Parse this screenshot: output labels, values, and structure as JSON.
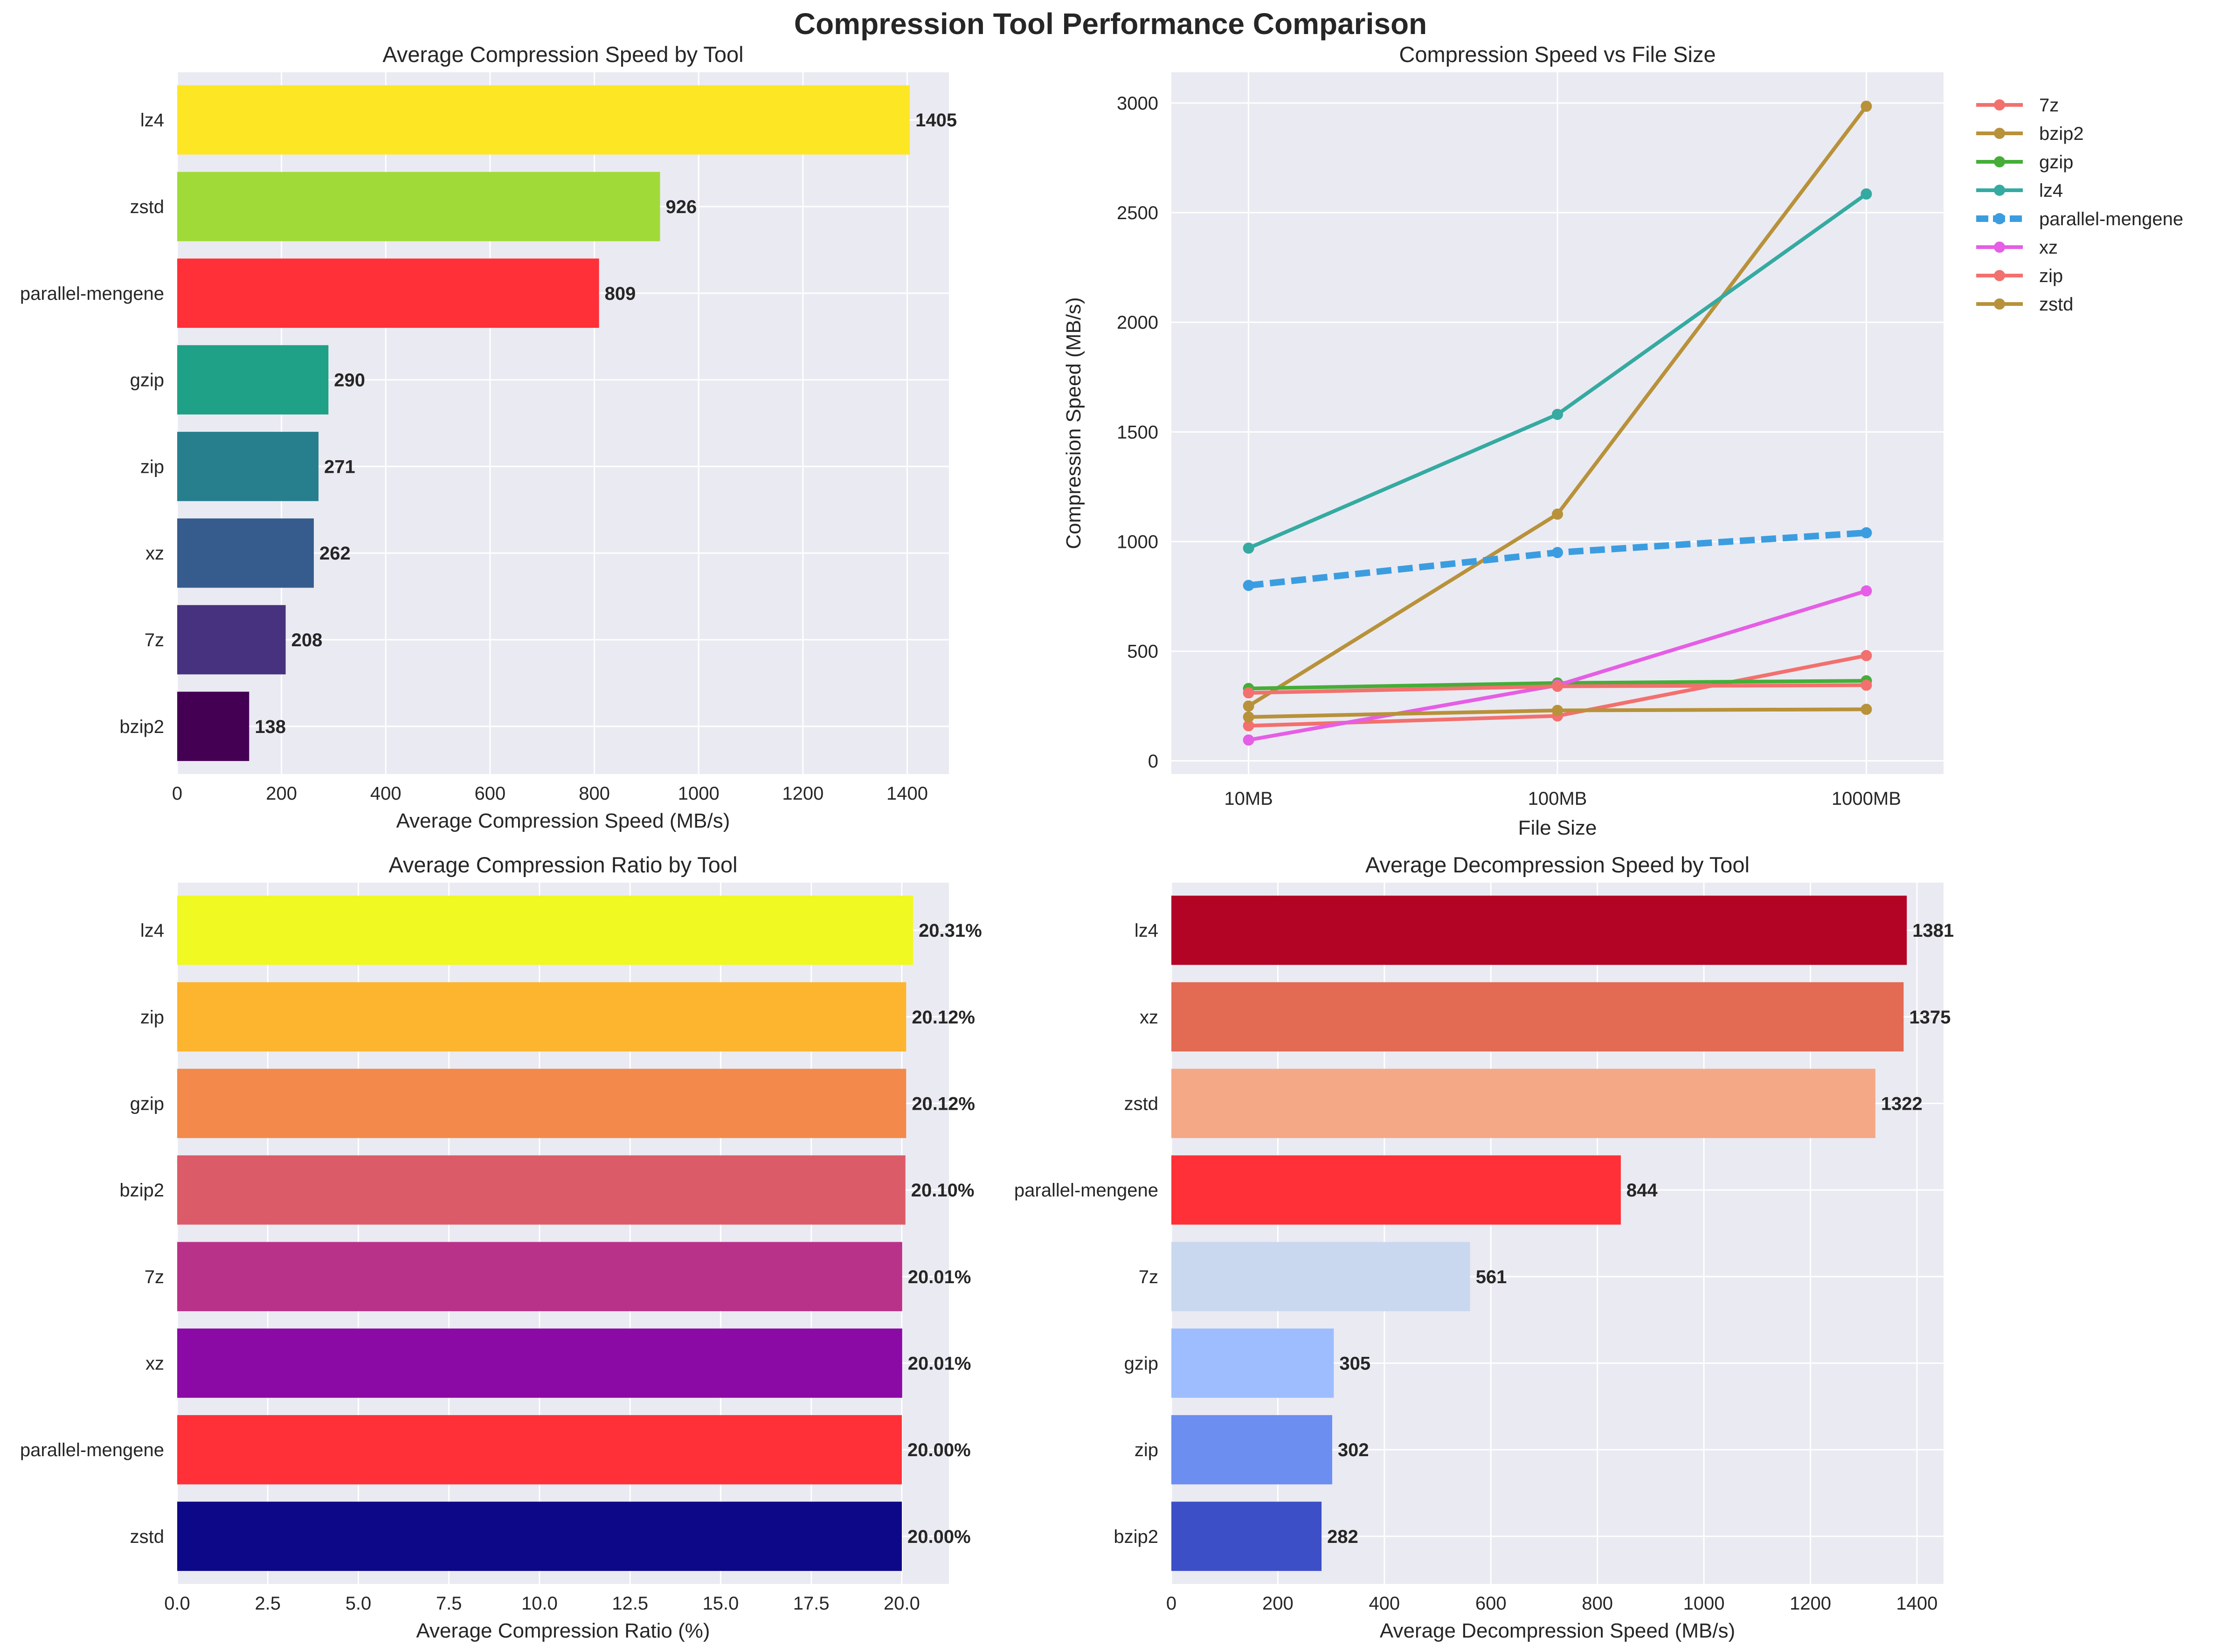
{
  "suptitle": "Compression Tool Performance Comparison",
  "chart_data": [
    {
      "type": "bar",
      "orientation": "horizontal",
      "title": "Average Compression Speed by Tool",
      "xlabel": "Average Compression Speed (MB/s)",
      "ylabel": "",
      "xlim": [
        0,
        1480
      ],
      "xticks": [
        0,
        200,
        400,
        600,
        800,
        1000,
        1200,
        1400
      ],
      "tick_labels": [
        "0",
        "200",
        "400",
        "600",
        "800",
        "1000",
        "1200",
        "1400"
      ],
      "grid": true,
      "categories": [
        "lz4",
        "zstd",
        "parallel-mengene",
        "gzip",
        "zip",
        "xz",
        "7z",
        "bzip2"
      ],
      "values": [
        1405,
        926,
        809,
        290,
        271,
        262,
        208,
        138
      ],
      "value_labels": [
        "1405",
        "926",
        "809",
        "290",
        "271",
        "262",
        "208",
        "138"
      ],
      "colors": [
        "#fde725",
        "#a0da39",
        "#ff3037",
        "#1fa187",
        "#277f8e",
        "#365c8d",
        "#46327e",
        "#440154"
      ]
    },
    {
      "type": "line",
      "title": "Compression Speed vs File Size",
      "xlabel": "File Size",
      "ylabel": "Compression Speed (MB/s)",
      "x": [
        "10MB",
        "100MB",
        "1000MB"
      ],
      "xscale": "log",
      "ylim": [
        -60,
        3140
      ],
      "yticks": [
        0,
        500,
        1000,
        1500,
        2000,
        2500,
        3000
      ],
      "ytick_labels": [
        "0",
        "500",
        "1000",
        "1500",
        "2000",
        "2500",
        "3000"
      ],
      "grid": true,
      "legend_position": "outside upper-right",
      "series": [
        {
          "name": "7z",
          "values": [
            160,
            205,
            480
          ],
          "color": "#f2706e",
          "style": "solid"
        },
        {
          "name": "bzip2",
          "values": [
            250,
            1125,
            2985
          ],
          "color": "#b8923a",
          "style": "solid"
        },
        {
          "name": "gzip",
          "values": [
            330,
            355,
            365
          ],
          "color": "#46ad38",
          "style": "solid"
        },
        {
          "name": "lz4",
          "values": [
            970,
            1580,
            2585
          ],
          "color": "#35aaa1",
          "style": "solid"
        },
        {
          "name": "parallel-mengene",
          "values": [
            800,
            950,
            1040
          ],
          "color": "#3b9de0",
          "style": "dashed"
        },
        {
          "name": "xz",
          "values": [
            95,
            345,
            775
          ],
          "color": "#e55ee5",
          "style": "solid"
        },
        {
          "name": "zip",
          "values": [
            310,
            340,
            345
          ],
          "color": "#f2706e",
          "style": "solid"
        },
        {
          "name": "zstd",
          "values": [
            200,
            230,
            235
          ],
          "color": "#b8923a",
          "style": "solid"
        }
      ]
    },
    {
      "type": "bar",
      "orientation": "horizontal",
      "title": "Average Compression Ratio by Tool",
      "xlabel": "Average Compression Ratio (%)",
      "ylabel": "",
      "xlim": [
        0,
        21.3
      ],
      "xticks": [
        0,
        2.5,
        5,
        7.5,
        10,
        12.5,
        15,
        17.5,
        20
      ],
      "tick_labels": [
        "0.0",
        "2.5",
        "5.0",
        "7.5",
        "10.0",
        "12.5",
        "15.0",
        "17.5",
        "20.0"
      ],
      "grid": true,
      "categories": [
        "lz4",
        "zip",
        "gzip",
        "bzip2",
        "7z",
        "xz",
        "parallel-mengene",
        "zstd"
      ],
      "values": [
        20.31,
        20.12,
        20.12,
        20.1,
        20.01,
        20.01,
        20.0,
        20.0
      ],
      "value_labels": [
        "20.31%",
        "20.12%",
        "20.12%",
        "20.10%",
        "20.01%",
        "20.01%",
        "20.00%",
        "20.00%"
      ],
      "colors": [
        "#f0f921",
        "#fdb42f",
        "#f3894a",
        "#db5c68",
        "#b93289",
        "#8b0aa5",
        "#ff3037",
        "#0d0887"
      ]
    },
    {
      "type": "bar",
      "orientation": "horizontal",
      "title": "Average Decompression Speed by Tool",
      "xlabel": "Average Decompression Speed (MB/s)",
      "ylabel": "",
      "xlim": [
        0,
        1450
      ],
      "xticks": [
        0,
        200,
        400,
        600,
        800,
        1000,
        1200,
        1400
      ],
      "tick_labels": [
        "0",
        "200",
        "400",
        "600",
        "800",
        "1000",
        "1200",
        "1400"
      ],
      "grid": true,
      "categories": [
        "lz4",
        "xz",
        "zstd",
        "parallel-mengene",
        "7z",
        "gzip",
        "zip",
        "bzip2"
      ],
      "values": [
        1381,
        1375,
        1322,
        844,
        561,
        305,
        302,
        282
      ],
      "value_labels": [
        "1381",
        "1375",
        "1322",
        "844",
        "561",
        "305",
        "302",
        "282"
      ],
      "colors": [
        "#b40426",
        "#e36a53",
        "#f5a886",
        "#ff3037",
        "#cad8ef",
        "#9dbdff",
        "#6b8ef0",
        "#3d4fc6"
      ]
    }
  ]
}
